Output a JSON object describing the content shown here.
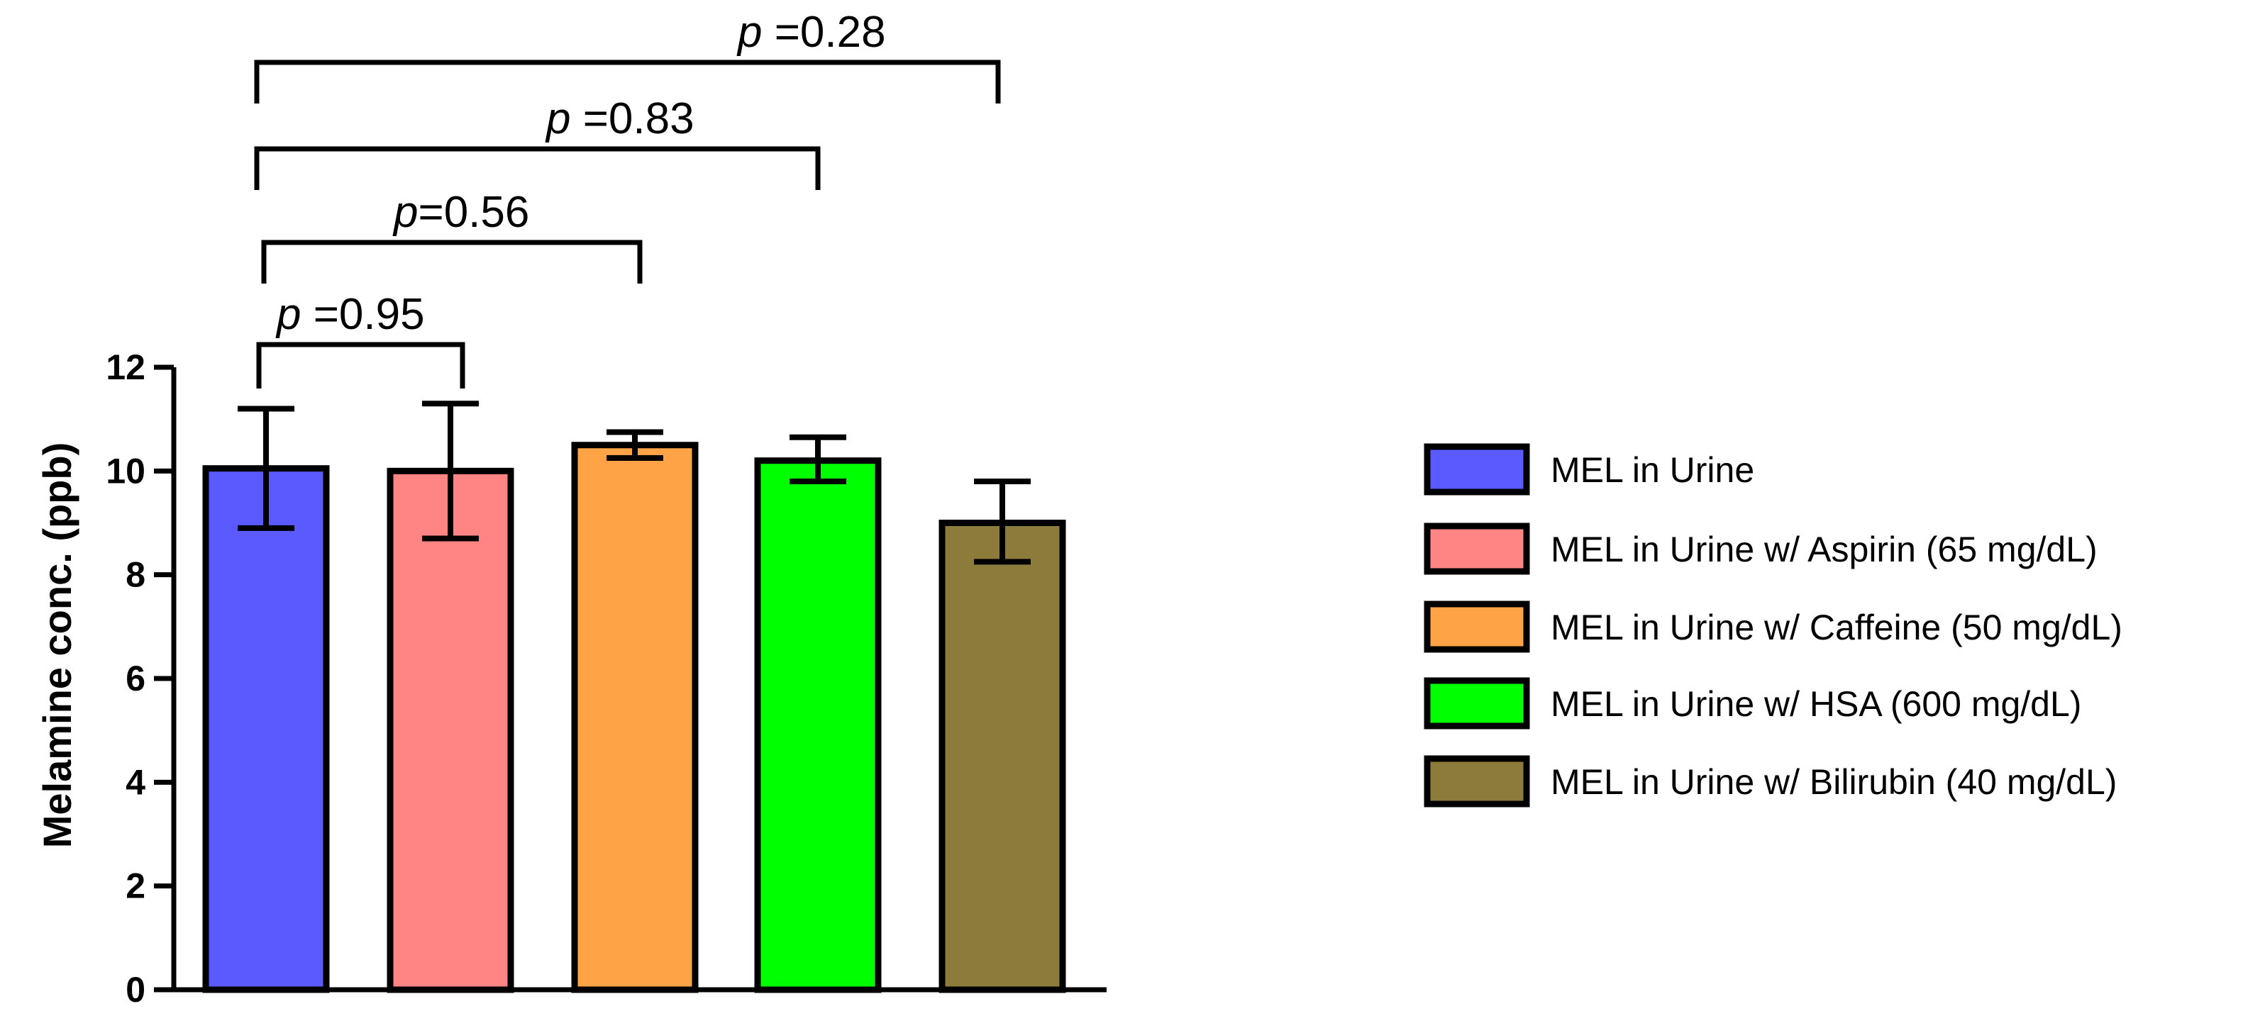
{
  "chart_data": {
    "type": "bar",
    "title": "",
    "xlabel": "",
    "ylabel": "Melamine conc. (ppb)",
    "ylim": [
      0,
      12
    ],
    "yticks": [
      "0",
      "2",
      "4",
      "6",
      "8",
      "10",
      "12"
    ],
    "grid": false,
    "legend_position": "right",
    "categories": [
      "MEL in Urine",
      "MEL in Urine w/ Aspirin (65 mg/dL)",
      "MEL in Urine w/ Caffeine (50 mg/dL)",
      "MEL in Urine w/ HSA (600 mg/dL)",
      "MEL in Urine w/ Bilirubin (40 mg/dL)"
    ],
    "values": [
      10.05,
      10.0,
      10.5,
      10.2,
      9.0
    ],
    "error_low": [
      8.9,
      8.7,
      10.25,
      9.8,
      8.25
    ],
    "error_high": [
      11.2,
      11.3,
      10.75,
      10.65,
      9.8
    ],
    "colors": [
      "#5a5aff",
      "#ff8585",
      "#ffa347",
      "#00ff00",
      "#8c7b3a"
    ],
    "comparisons": [
      {
        "from": 0,
        "to": 1,
        "p": "p",
        "text": " =0.95"
      },
      {
        "from": 0,
        "to": 2,
        "p": "p",
        "text": "=0.56"
      },
      {
        "from": 0,
        "to": 3,
        "p": "p",
        "text": " =0.83"
      },
      {
        "from": 0,
        "to": 4,
        "p": "p",
        "text": " =0.28"
      }
    ]
  }
}
